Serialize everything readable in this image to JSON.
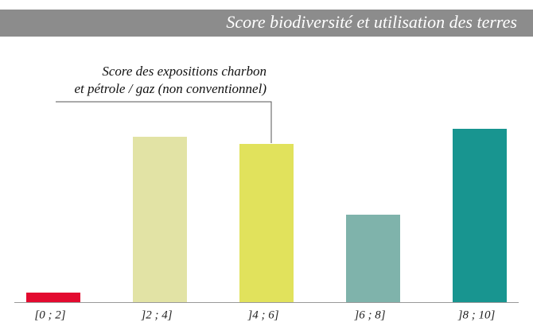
{
  "chart_data": {
    "type": "bar",
    "title": "Score biodiversité et utilisation des terres",
    "annotation": [
      "Score des expositions charbon",
      "et pétrole / gaz (non conventionnel)"
    ],
    "categories": [
      "[0 ; 2]",
      "]2 ; 4]",
      "]4 ; 6]",
      "]6 ; 8]",
      "]8 ; 10]"
    ],
    "values": [
      12,
      208,
      199,
      110,
      218
    ],
    "colors": [
      "#e30a2f",
      "#e2e3a5",
      "#e1e25c",
      "#7fb3ab",
      "#189590"
    ],
    "ylim": [
      0,
      230
    ]
  }
}
